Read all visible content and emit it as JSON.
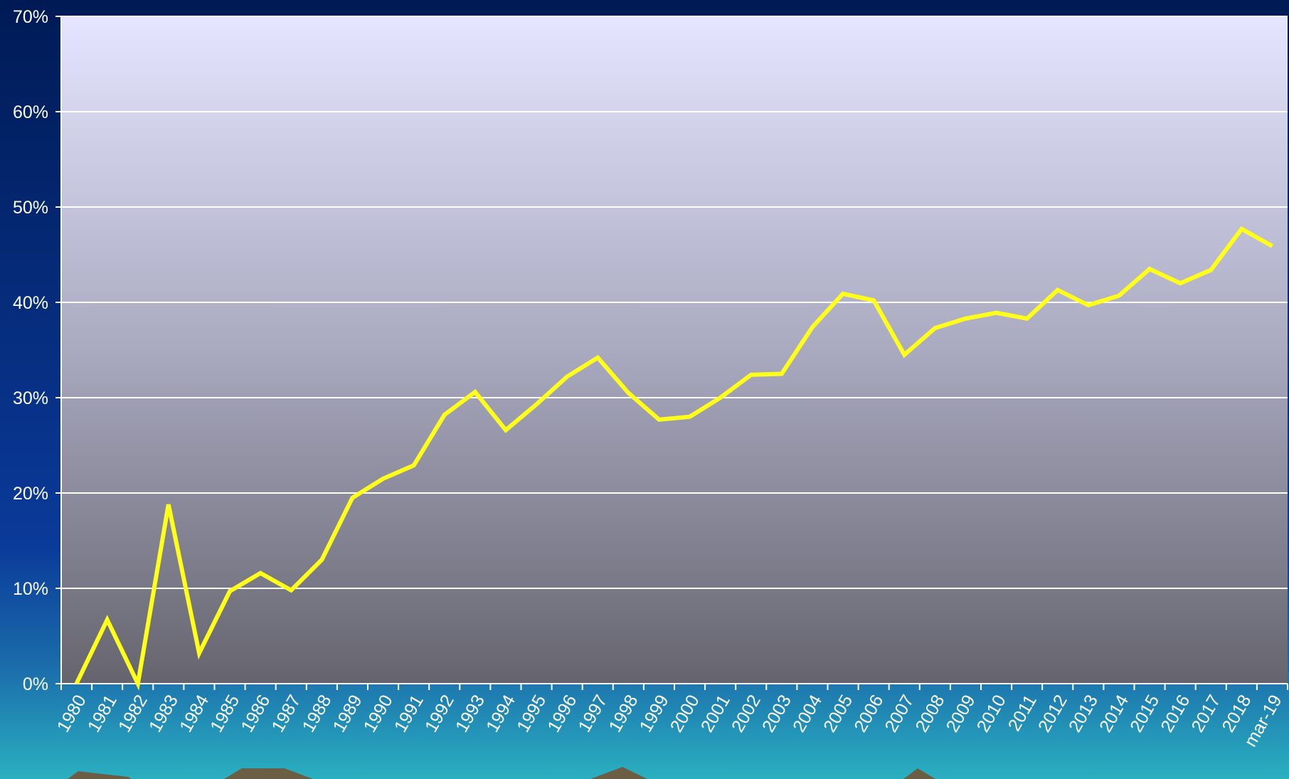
{
  "chart_data": {
    "type": "line",
    "categories": [
      "1980",
      "1981",
      "1982",
      "1983",
      "1984",
      "1985",
      "1986",
      "1987",
      "1988",
      "1989",
      "1990",
      "1991",
      "1992",
      "1993",
      "1994",
      "1995",
      "1996",
      "1997",
      "1998",
      "1999",
      "2000",
      "2001",
      "2002",
      "2003",
      "2004",
      "2005",
      "2006",
      "2007",
      "2008",
      "2009",
      "2010",
      "2011",
      "2012",
      "2013",
      "2014",
      "2015",
      "2016",
      "2017",
      "2018",
      "mar-19"
    ],
    "series": [
      {
        "color": "#ffff1a",
        "values": [
          0,
          6.7,
          0,
          18.8,
          3.2,
          9.7,
          11.6,
          9.8,
          13.0,
          19.5,
          21.5,
          22.9,
          28.2,
          30.6,
          26.6,
          29.3,
          32.2,
          34.2,
          30.5,
          27.7,
          28.0,
          30.0,
          32.4,
          32.5,
          37.4,
          40.9,
          40.2,
          34.5,
          37.3,
          38.3,
          38.9,
          38.3,
          41.3,
          39.7,
          40.7,
          43.5,
          42.0,
          43.4,
          47.7,
          45.9
        ]
      }
    ],
    "ylim": [
      0,
      70
    ],
    "yticks": [
      {
        "value": 0,
        "label": "0%"
      },
      {
        "value": 10,
        "label": "10%"
      },
      {
        "value": 20,
        "label": "20%"
      },
      {
        "value": 30,
        "label": "30%"
      },
      {
        "value": 40,
        "label": "40%"
      },
      {
        "value": 50,
        "label": "50%"
      },
      {
        "value": 60,
        "label": "60%"
      },
      {
        "value": 70,
        "label": "70%"
      }
    ],
    "grid": true
  }
}
